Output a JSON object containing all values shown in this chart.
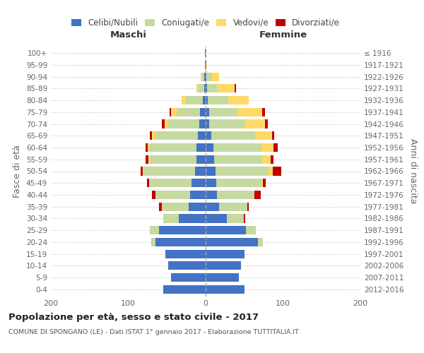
{
  "age_groups": [
    "0-4",
    "5-9",
    "10-14",
    "15-19",
    "20-24",
    "25-29",
    "30-34",
    "35-39",
    "40-44",
    "45-49",
    "50-54",
    "55-59",
    "60-64",
    "65-69",
    "70-74",
    "75-79",
    "80-84",
    "85-89",
    "90-94",
    "95-99",
    "100+"
  ],
  "birth_years": [
    "2012-2016",
    "2007-2011",
    "2002-2006",
    "1997-2001",
    "1992-1996",
    "1987-1991",
    "1982-1986",
    "1977-1981",
    "1972-1976",
    "1967-1971",
    "1962-1966",
    "1957-1961",
    "1952-1956",
    "1947-1951",
    "1942-1946",
    "1937-1941",
    "1932-1936",
    "1927-1931",
    "1922-1926",
    "1917-1921",
    "≤ 1916"
  ],
  "males": {
    "celibi": [
      55,
      45,
      48,
      52,
      65,
      60,
      35,
      22,
      20,
      18,
      14,
      12,
      12,
      10,
      8,
      7,
      4,
      2,
      2,
      1,
      1
    ],
    "coniugati": [
      0,
      0,
      0,
      0,
      5,
      12,
      20,
      35,
      45,
      55,
      65,
      60,
      60,
      55,
      40,
      30,
      22,
      8,
      3,
      0,
      0
    ],
    "vedovi": [
      0,
      0,
      0,
      0,
      0,
      0,
      0,
      0,
      0,
      0,
      2,
      2,
      3,
      4,
      5,
      8,
      5,
      2,
      1,
      0,
      0
    ],
    "divorziati": [
      0,
      0,
      0,
      0,
      0,
      0,
      0,
      3,
      4,
      3,
      3,
      4,
      3,
      3,
      4,
      2,
      0,
      0,
      0,
      0,
      0
    ]
  },
  "females": {
    "nubili": [
      50,
      43,
      46,
      50,
      68,
      52,
      27,
      17,
      15,
      14,
      13,
      11,
      10,
      7,
      5,
      5,
      3,
      2,
      1,
      0,
      0
    ],
    "coniugate": [
      0,
      0,
      0,
      0,
      6,
      13,
      22,
      37,
      48,
      58,
      68,
      62,
      62,
      57,
      46,
      36,
      26,
      13,
      7,
      1,
      0
    ],
    "vedove": [
      0,
      0,
      0,
      0,
      0,
      0,
      0,
      0,
      0,
      2,
      6,
      11,
      16,
      22,
      26,
      32,
      27,
      22,
      9,
      1,
      0
    ],
    "divorziate": [
      0,
      0,
      0,
      0,
      0,
      0,
      2,
      2,
      8,
      4,
      11,
      4,
      5,
      3,
      3,
      4,
      0,
      2,
      0,
      0,
      0
    ]
  },
  "colors": {
    "celibi_nubili": "#4472C4",
    "coniugati": "#C5D9A0",
    "vedovi": "#FFD966",
    "divorziati": "#C00000"
  },
  "legend_labels": [
    "Celibi/Nubili",
    "Coniugati/e",
    "Vedovi/e",
    "Divorziati/e"
  ],
  "title": "Popolazione per età, sesso e stato civile - 2017",
  "subtitle": "COMUNE DI SPONGANO (LE) - Dati ISTAT 1° gennaio 2017 - Elaborazione TUTTITALIA.IT",
  "xlabel_left": "Maschi",
  "xlabel_right": "Femmine",
  "ylabel": "Fasce di età",
  "ylabel_right": "Anni di nascita",
  "xlim": 200,
  "background_color": "#ffffff",
  "grid_color": "#cccccc"
}
